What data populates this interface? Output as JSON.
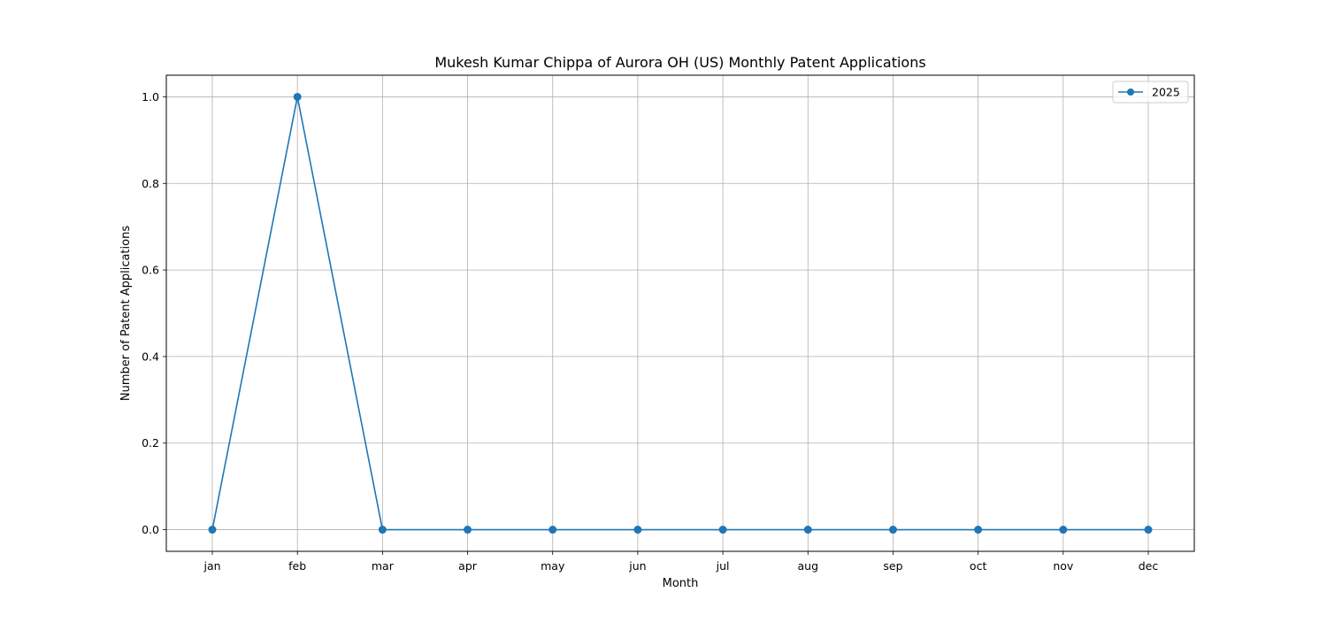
{
  "chart_data": {
    "type": "line",
    "title": "Mukesh Kumar Chippa of Aurora OH (US) Monthly Patent Applications",
    "xlabel": "Month",
    "ylabel": "Number of Patent Applications",
    "categories": [
      "jan",
      "feb",
      "mar",
      "apr",
      "may",
      "jun",
      "jul",
      "aug",
      "sep",
      "oct",
      "nov",
      "dec"
    ],
    "series": [
      {
        "name": "2025",
        "color": "#1f77b4",
        "marker": "circle",
        "values": [
          0,
          1,
          0,
          0,
          0,
          0,
          0,
          0,
          0,
          0,
          0,
          0
        ]
      }
    ],
    "ylim": [
      -0.05,
      1.05
    ],
    "yticks": [
      0.0,
      0.2,
      0.4,
      0.6,
      0.8,
      1.0
    ],
    "ytick_labels": [
      "0.0",
      "0.2",
      "0.4",
      "0.6",
      "0.8",
      "1.0"
    ],
    "grid": true,
    "legend_position": "top-right"
  }
}
